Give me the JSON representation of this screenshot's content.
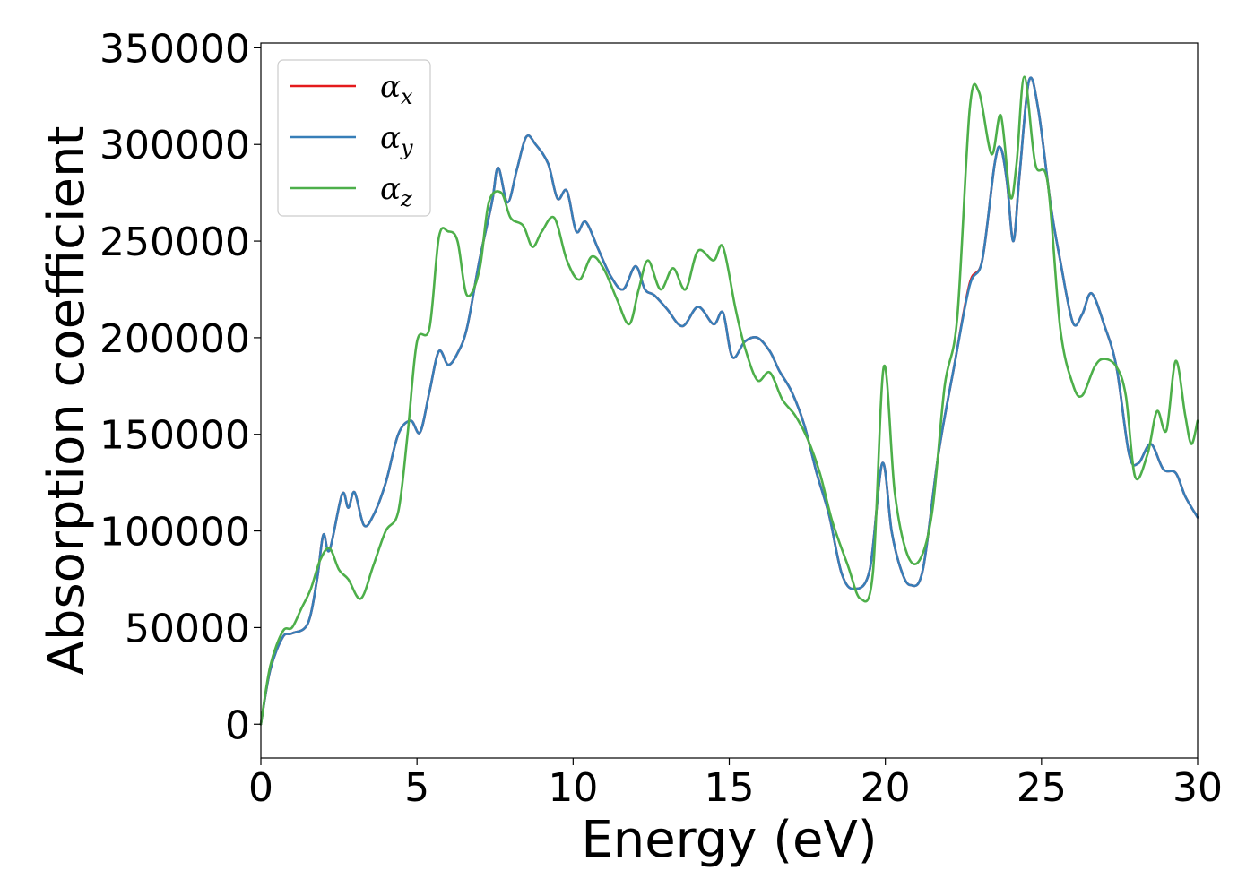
{
  "chart_data": {
    "type": "line",
    "xlabel": "Energy (eV)",
    "ylabel": "Absorption coefficient",
    "xlim": [
      0,
      30
    ],
    "ylim": [
      -17500,
      352500
    ],
    "xticks": [
      "0",
      "5",
      "10",
      "15",
      "20",
      "25",
      "30"
    ],
    "yticks": [
      "0",
      "50000",
      "100000",
      "150000",
      "200000",
      "250000",
      "300000",
      "350000"
    ],
    "grid": false,
    "legend_position": "top-left",
    "series": [
      {
        "name": "α",
        "subscript": "x",
        "color": "#e41a1c",
        "x": [
          0,
          0.3,
          0.7,
          1.0,
          1.5,
          1.8,
          2.0,
          2.2,
          2.6,
          2.8,
          3.0,
          3.3,
          3.6,
          4.0,
          4.4,
          4.8,
          5.1,
          5.4,
          5.7,
          6.0,
          6.3,
          6.6,
          7.0,
          7.4,
          7.6,
          7.9,
          8.2,
          8.5,
          8.8,
          9.2,
          9.5,
          9.8,
          10.1,
          10.4,
          10.8,
          11.2,
          11.6,
          12.0,
          12.3,
          12.6,
          13.0,
          13.5,
          14.0,
          14.5,
          14.8,
          15.1,
          15.5,
          15.9,
          16.3,
          16.6,
          17.0,
          17.4,
          17.8,
          18.2,
          18.6,
          19.0,
          19.5,
          19.9,
          20.2,
          20.5,
          20.8,
          21.2,
          21.7,
          22.2,
          22.7,
          23.1,
          23.5,
          23.7,
          23.9,
          24.1,
          24.3,
          24.6,
          24.9,
          25.3,
          25.6,
          26.0,
          26.3,
          26.6,
          27.0,
          27.4,
          27.8,
          28.1,
          28.5,
          28.9,
          29.3,
          29.6,
          30.0
        ],
        "y": [
          0,
          28000,
          45000,
          47000,
          52000,
          75000,
          98000,
          90000,
          119000,
          112000,
          120000,
          103000,
          108000,
          125000,
          150000,
          157000,
          151000,
          172000,
          193000,
          186000,
          192000,
          205000,
          240000,
          270000,
          288000,
          270000,
          287000,
          304000,
          300000,
          290000,
          272000,
          276000,
          255000,
          260000,
          246000,
          232000,
          225000,
          237000,
          225000,
          222000,
          215000,
          206000,
          216000,
          207000,
          213000,
          190000,
          198000,
          200000,
          193000,
          183000,
          172000,
          155000,
          130000,
          108000,
          78000,
          70000,
          80000,
          135000,
          100000,
          80000,
          72000,
          80000,
          140000,
          185000,
          228000,
          240000,
          290000,
          298000,
          280000,
          250000,
          285000,
          333000,
          318000,
          268000,
          240000,
          208000,
          212000,
          223000,
          207000,
          185000,
          140000,
          135000,
          145000,
          132000,
          130000,
          118000,
          107000
        ]
      },
      {
        "name": "α",
        "subscript": "y",
        "color": "#377eb8",
        "x": [
          0,
          0.3,
          0.7,
          1.0,
          1.5,
          1.8,
          2.0,
          2.2,
          2.6,
          2.8,
          3.0,
          3.3,
          3.6,
          4.0,
          4.4,
          4.8,
          5.1,
          5.4,
          5.7,
          6.0,
          6.3,
          6.6,
          7.0,
          7.4,
          7.6,
          7.9,
          8.2,
          8.5,
          8.8,
          9.2,
          9.5,
          9.8,
          10.1,
          10.4,
          10.8,
          11.2,
          11.6,
          12.0,
          12.3,
          12.6,
          13.0,
          13.5,
          14.0,
          14.5,
          14.8,
          15.1,
          15.5,
          15.9,
          16.3,
          16.6,
          17.0,
          17.4,
          17.8,
          18.2,
          18.6,
          19.0,
          19.5,
          19.9,
          20.2,
          20.5,
          20.8,
          21.2,
          21.7,
          22.2,
          22.7,
          23.1,
          23.5,
          23.7,
          23.9,
          24.1,
          24.3,
          24.6,
          24.9,
          25.3,
          25.6,
          26.0,
          26.3,
          26.6,
          27.0,
          27.4,
          27.8,
          28.1,
          28.5,
          28.9,
          29.3,
          29.6,
          30.0
        ],
        "y": [
          0,
          28000,
          45000,
          47000,
          52000,
          75000,
          98000,
          90000,
          119000,
          112000,
          120000,
          103000,
          108000,
          125000,
          150000,
          157000,
          151000,
          172000,
          193000,
          186000,
          192000,
          205000,
          240000,
          270000,
          288000,
          270000,
          287000,
          304000,
          300000,
          290000,
          272000,
          276000,
          255000,
          260000,
          246000,
          232000,
          225000,
          237000,
          225000,
          222000,
          215000,
          206000,
          216000,
          207000,
          213000,
          190000,
          198000,
          200000,
          193000,
          183000,
          172000,
          155000,
          130000,
          108000,
          78000,
          70000,
          80000,
          135000,
          100000,
          80000,
          72000,
          80000,
          140000,
          185000,
          227000,
          240000,
          290000,
          298000,
          280000,
          250000,
          285000,
          333000,
          318000,
          268000,
          240000,
          208000,
          212000,
          223000,
          207000,
          185000,
          140000,
          135000,
          145000,
          132000,
          130000,
          118000,
          107000
        ]
      },
      {
        "name": "α",
        "subscript": "z",
        "color": "#4daf4a",
        "x": [
          0,
          0.3,
          0.7,
          1.0,
          1.3,
          1.6,
          1.9,
          2.2,
          2.5,
          2.8,
          3.2,
          3.6,
          4.0,
          4.4,
          4.7,
          5.0,
          5.4,
          5.7,
          6.0,
          6.3,
          6.6,
          7.0,
          7.3,
          7.7,
          8.0,
          8.4,
          8.7,
          9.0,
          9.4,
          9.8,
          10.2,
          10.6,
          11.0,
          11.4,
          11.8,
          12.1,
          12.4,
          12.8,
          13.2,
          13.6,
          14.0,
          14.5,
          14.8,
          15.2,
          15.5,
          15.9,
          16.3,
          16.7,
          17.1,
          17.5,
          17.9,
          18.3,
          18.8,
          19.2,
          19.6,
          19.95,
          20.3,
          20.7,
          21.1,
          21.5,
          21.9,
          22.3,
          22.7,
          23.0,
          23.4,
          23.7,
          24.0,
          24.2,
          24.45,
          24.8,
          25.2,
          25.6,
          26.0,
          26.3,
          26.7,
          27.0,
          27.4,
          27.7,
          28.0,
          28.4,
          28.7,
          29.0,
          29.3,
          29.6,
          29.8,
          30.0
        ],
        "y": [
          0,
          30000,
          48000,
          50000,
          60000,
          70000,
          85000,
          91000,
          80000,
          75000,
          65000,
          82000,
          100000,
          110000,
          150000,
          198000,
          205000,
          252000,
          255000,
          250000,
          222000,
          235000,
          270000,
          275000,
          262000,
          258000,
          247000,
          255000,
          262000,
          240000,
          230000,
          242000,
          235000,
          220000,
          207000,
          225000,
          240000,
          225000,
          236000,
          225000,
          245000,
          240000,
          247000,
          215000,
          195000,
          178000,
          182000,
          168000,
          160000,
          148000,
          130000,
          105000,
          82000,
          65000,
          78000,
          185000,
          120000,
          88000,
          85000,
          110000,
          175000,
          210000,
          318000,
          327000,
          295000,
          315000,
          273000,
          290000,
          335000,
          290000,
          280000,
          205000,
          176000,
          170000,
          185000,
          189000,
          185000,
          170000,
          128000,
          140000,
          162000,
          152000,
          188000,
          160000,
          145000,
          157000
        ]
      }
    ]
  }
}
